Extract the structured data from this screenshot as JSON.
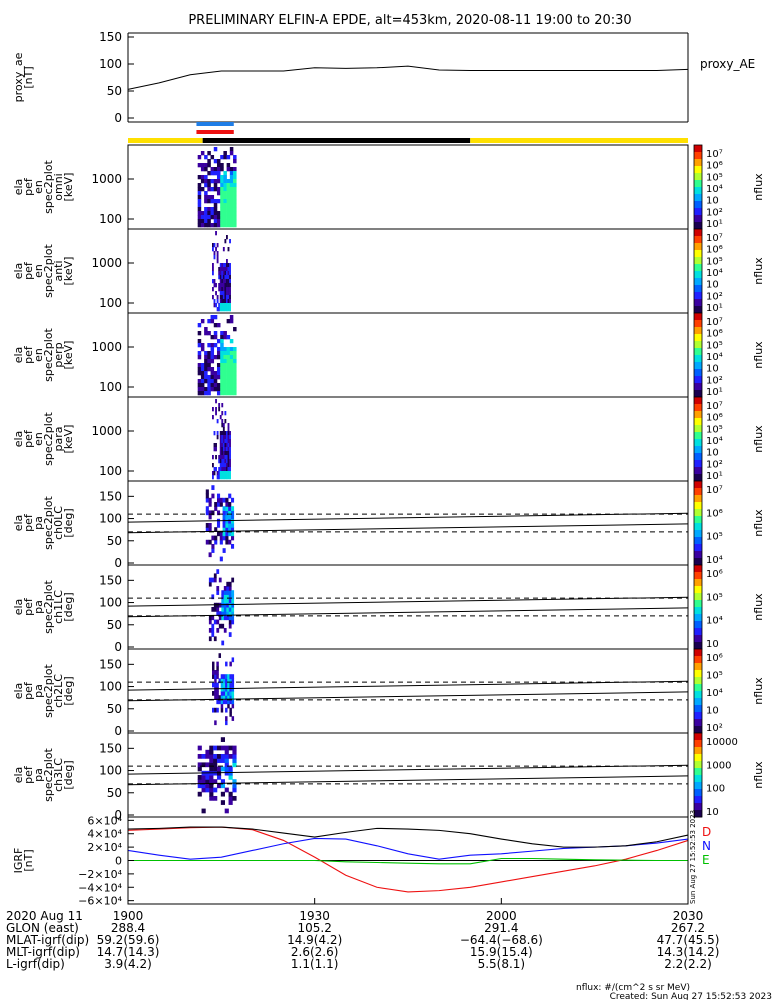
{
  "title": "PRELIMINARY ELFIN-A EPDE, alt=453km, 2020-08-11 19:00 to 20:30",
  "colors": {
    "yellow": "#ffe000",
    "black": "#000000",
    "blue": "#1f7de6",
    "red": "#ee1111",
    "green": "#00c000",
    "grf_blue": "#1010ff"
  },
  "chart_data": [
    {
      "type": "line",
      "panel": "proxy_ae",
      "ylabel": [
        "proxy_ae",
        "[nT]"
      ],
      "legend": "proxy_AE",
      "ylim": [
        0,
        150
      ],
      "yticks": [
        "150",
        "100",
        "50",
        "0"
      ],
      "tick_values": [
        150,
        100,
        50,
        0
      ],
      "x_minutes": [
        0,
        5,
        10,
        15,
        20,
        25,
        30,
        35,
        40,
        45,
        50,
        55,
        60,
        65,
        70,
        75,
        80,
        85,
        90
      ],
      "values": [
        53,
        65,
        80,
        87,
        87,
        87,
        93,
        92,
        93,
        96,
        89,
        88,
        88,
        88,
        88,
        88,
        88,
        88,
        90
      ]
    },
    {
      "type": "bar",
      "panel": "orbit_bar",
      "segments": [
        {
          "start": 0,
          "end": 12,
          "color": "yellow"
        },
        {
          "start": 12,
          "end": 55,
          "color": "black"
        },
        {
          "start": 55,
          "end": 90,
          "color": "yellow"
        }
      ],
      "markers": [
        {
          "start": 11,
          "end": 17,
          "color": "blue"
        },
        {
          "start": 11,
          "end": 17,
          "color": "red"
        }
      ]
    },
    {
      "type": "heatmap",
      "panel": "spec_en_omni",
      "ylabel": [
        "ela",
        "pef",
        "en",
        "spec2plot",
        "omni",
        "[keV]"
      ],
      "yticks": [
        "1000",
        "100"
      ],
      "colorbar": {
        "label": "nflux",
        "ticks": [
          "10⁷",
          "10⁶",
          "10⁵",
          "10⁴",
          "10⁳",
          "10²",
          "10¹"
        ]
      },
      "t_start": 11.2,
      "t_end": 17.4
    },
    {
      "type": "heatmap",
      "panel": "spec_en_anti",
      "ylabel": [
        "ela",
        "pef",
        "en",
        "spec2plot",
        "anti",
        "[keV]"
      ],
      "yticks": [
        "1000",
        "100"
      ],
      "colorbar": {
        "label": "nflux",
        "ticks": [
          "10⁷",
          "10⁶",
          "10⁵",
          "10⁴",
          "10⁳",
          "10²",
          "10¹"
        ]
      },
      "t_start": 13.5,
      "t_end": 16.5
    },
    {
      "type": "heatmap",
      "panel": "spec_en_perp",
      "ylabel": [
        "ela",
        "pef",
        "en",
        "spec2plot",
        "perp",
        "[keV]"
      ],
      "yticks": [
        "1000",
        "100"
      ],
      "colorbar": {
        "label": "nflux",
        "ticks": [
          "10⁷",
          "10⁶",
          "10⁵",
          "10⁴",
          "10⁳",
          "10²",
          "10¹"
        ]
      },
      "t_start": 11.2,
      "t_end": 17.4
    },
    {
      "type": "heatmap",
      "panel": "spec_en_para",
      "ylabel": [
        "ela",
        "pef",
        "en",
        "spec2plot",
        "para",
        "[keV]"
      ],
      "yticks": [
        "1000",
        "100"
      ],
      "colorbar": {
        "label": "nflux",
        "ticks": [
          "10⁷",
          "10⁶",
          "10⁵",
          "10⁴",
          "10⁳",
          "10²",
          "10¹"
        ]
      },
      "t_start": 13.5,
      "t_end": 16.5
    },
    {
      "type": "heatmap",
      "panel": "spec_pa_ch0",
      "ylabel": [
        "ela",
        "pef",
        "pa",
        "spec2plot",
        "ch0LC",
        "[deg]"
      ],
      "ylim": [
        0,
        180
      ],
      "yticks": [
        "150",
        "100",
        "50",
        "0"
      ],
      "tick_values": [
        150,
        100,
        50,
        0
      ],
      "dashed": [
        70,
        110
      ],
      "solid": [
        [
          68,
          88
        ],
        [
          92,
          112
        ]
      ],
      "colorbar": {
        "label": "nflux",
        "ticks": [
          "10⁷",
          "10⁶",
          "10⁵",
          "10⁴"
        ]
      },
      "t_start": 12.5,
      "t_end": 17.0
    },
    {
      "type": "heatmap",
      "panel": "spec_pa_ch1",
      "ylabel": [
        "ela",
        "pef",
        "pa",
        "spec2plot",
        "ch1LC",
        "[deg]"
      ],
      "ylim": [
        0,
        180
      ],
      "yticks": [
        "150",
        "100",
        "50",
        "0"
      ],
      "tick_values": [
        150,
        100,
        50,
        0
      ],
      "dashed": [
        70,
        110
      ],
      "solid": [
        [
          68,
          88
        ],
        [
          92,
          112
        ]
      ],
      "colorbar": {
        "label": "nflux",
        "ticks": [
          "10⁶",
          "10⁵",
          "10⁴",
          "10⁳"
        ]
      },
      "t_start": 13.0,
      "t_end": 17.0
    },
    {
      "type": "heatmap",
      "panel": "spec_pa_ch2",
      "ylabel": [
        "ela",
        "pef",
        "pa",
        "spec2plot",
        "ch2LC",
        "[deg]"
      ],
      "ylim": [
        0,
        180
      ],
      "yticks": [
        "150",
        "100",
        "50",
        "0"
      ],
      "tick_values": [
        150,
        100,
        50,
        0
      ],
      "dashed": [
        70,
        110
      ],
      "solid": [
        [
          68,
          88
        ],
        [
          92,
          112
        ]
      ],
      "colorbar": {
        "label": "nflux",
        "ticks": [
          "10⁶",
          "10⁵",
          "10⁴",
          "10⁳",
          "10²"
        ]
      },
      "t_start": 13.5,
      "t_end": 17.0
    },
    {
      "type": "heatmap",
      "panel": "spec_pa_ch3",
      "ylabel": [
        "ela",
        "pef",
        "pa",
        "spec2plot",
        "ch3LC",
        "[deg]"
      ],
      "ylim": [
        0,
        180
      ],
      "yticks": [
        "150",
        "100",
        "50",
        "0"
      ],
      "tick_values": [
        150,
        100,
        50,
        0
      ],
      "dashed": [
        70,
        110
      ],
      "solid": [
        [
          68,
          88
        ],
        [
          92,
          112
        ]
      ],
      "colorbar": {
        "label": "nflux",
        "ticks": [
          "10000",
          "1000",
          "100",
          "10"
        ]
      },
      "t_start": 11.2,
      "t_end": 17.4
    },
    {
      "type": "line",
      "panel": "igrf",
      "ylabel": [
        "IGRF",
        "[nT]"
      ],
      "ylim": [
        -65000,
        65000
      ],
      "yticks": [
        "6×10⁴",
        "4×10⁴",
        "2×10⁴",
        "0",
        "−2×10⁴",
        "−4×10⁴",
        "−6×10⁴"
      ],
      "tick_values": [
        60000,
        40000,
        20000,
        0,
        -20000,
        -40000,
        -60000
      ],
      "x_minutes": [
        0,
        5,
        10,
        15,
        20,
        25,
        30,
        35,
        40,
        45,
        50,
        55,
        60,
        65,
        70,
        75,
        80,
        85,
        90
      ],
      "series": [
        {
          "name": "D",
          "color": "red",
          "values": [
            45000,
            47000,
            49000,
            50000,
            46000,
            30000,
            5000,
            -22000,
            -40000,
            -47000,
            -45000,
            -40000,
            -32000,
            -24000,
            -16000,
            -8000,
            2000,
            15000,
            30000
          ]
        },
        {
          "name": "N",
          "color": "grf_blue",
          "values": [
            15000,
            8000,
            2000,
            5000,
            15000,
            25000,
            33000,
            32000,
            22000,
            10000,
            2000,
            8000,
            10000,
            14000,
            18000,
            20000,
            22000,
            26000,
            32000
          ]
        },
        {
          "name": "E",
          "color": "green",
          "values": [
            0,
            0,
            0,
            0,
            0,
            0,
            0,
            -2000,
            -3000,
            -4000,
            -5000,
            -5000,
            3000,
            3000,
            2000,
            1000,
            500,
            0,
            0
          ]
        },
        {
          "name": "",
          "color": "black",
          "values": [
            47000,
            48000,
            50000,
            50000,
            47000,
            41000,
            35000,
            42000,
            48000,
            47000,
            45000,
            40000,
            32000,
            25000,
            20000,
            20000,
            22000,
            28000,
            38000
          ]
        }
      ],
      "side_label": "Sun Aug 27 15:52:53 2023"
    }
  ],
  "xaxis": {
    "ticks": [
      "1900",
      "1930",
      "2000",
      "2030"
    ],
    "tick_minutes": [
      0,
      30,
      60,
      90
    ],
    "rows": [
      {
        "label": "2020 Aug 11",
        "values": [
          "1900",
          "1930",
          "2000",
          "2030"
        ]
      },
      {
        "label": "GLON (east)",
        "values": [
          "288.4",
          "105.2",
          "291.4",
          "267.2"
        ]
      },
      {
        "label": "MLAT-igrf(dip)",
        "values": [
          "59.2(59.6)",
          "14.9(4.2)",
          "−64.4(−68.6)",
          "47.7(45.5)"
        ]
      },
      {
        "label": "MLT-igrf(dip)",
        "values": [
          "14.7(14.3)",
          "2.6(2.6)",
          "15.9(15.4)",
          "14.3(14.2)"
        ]
      },
      {
        "label": "L-igrf(dip)",
        "values": [
          "3.9(4.2)",
          "1.1(1.1)",
          "5.5(8.1)",
          "2.2(2.2)"
        ]
      }
    ]
  },
  "footer": {
    "units": "nflux: #/(cm^2 s sr MeV)",
    "created": "Created: Sun Aug 27 15:52:53 2023"
  }
}
